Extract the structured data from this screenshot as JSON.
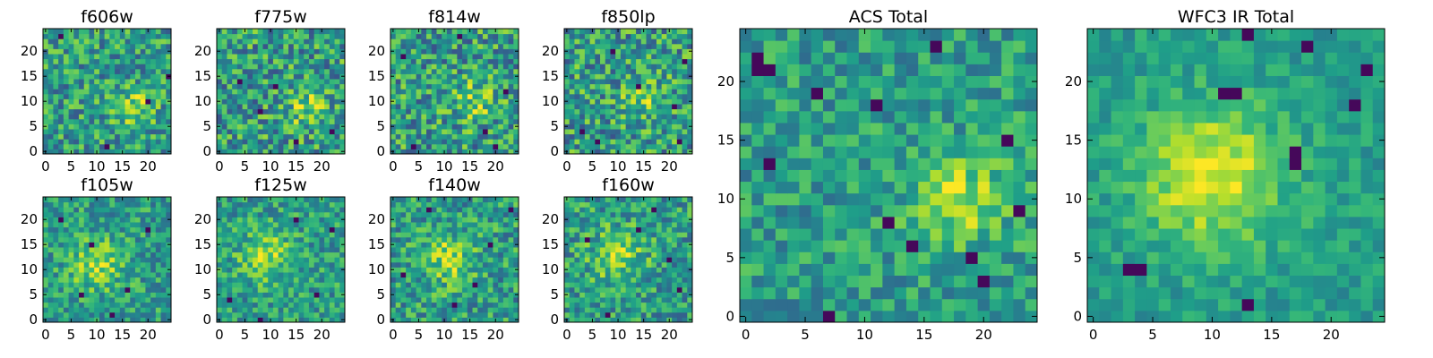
{
  "chart_data": [
    {
      "type": "heatmap",
      "title": "f606w",
      "grid_size": 25,
      "seed": 11,
      "peak": [
        17,
        9
      ],
      "peak_width": 4,
      "peak_strength": 0.25,
      "noise": 0.55,
      "holes": [
        [
          3,
          23
        ],
        [
          12,
          1
        ],
        [
          20,
          10
        ],
        [
          24,
          15
        ]
      ],
      "xticks": [
        0,
        5,
        10,
        15,
        20
      ],
      "yticks": [
        0,
        5,
        10,
        15,
        20
      ],
      "xlim": [
        -0.5,
        24.5
      ],
      "ylim": [
        -0.5,
        24.5
      ],
      "colormap": "viridis"
    },
    {
      "type": "heatmap",
      "title": "f775w",
      "grid_size": 25,
      "seed": 23,
      "peak": [
        17,
        9
      ],
      "peak_width": 4,
      "peak_strength": 0.25,
      "noise": 0.6,
      "holes": [
        [
          4,
          14
        ],
        [
          11,
          13
        ],
        [
          8,
          8
        ],
        [
          22,
          4
        ],
        [
          15,
          2
        ]
      ],
      "xticks": [
        0,
        5,
        10,
        15,
        20
      ],
      "yticks": [
        0,
        5,
        10,
        15,
        20
      ],
      "xlim": [
        -0.5,
        24.5
      ],
      "ylim": [
        -0.5,
        24.5
      ],
      "colormap": "viridis"
    },
    {
      "type": "heatmap",
      "title": "f814w",
      "grid_size": 25,
      "seed": 37,
      "peak": [
        16,
        10
      ],
      "peak_width": 4,
      "peak_strength": 0.25,
      "noise": 0.6,
      "holes": [
        [
          2,
          19
        ],
        [
          13,
          23
        ],
        [
          18,
          4
        ],
        [
          4,
          1
        ],
        [
          20,
          1
        ],
        [
          22,
          12
        ]
      ],
      "xticks": [
        0,
        5,
        10,
        15,
        20
      ],
      "yticks": [
        0,
        5,
        10,
        15,
        20
      ],
      "xlim": [
        -0.5,
        24.5
      ],
      "ylim": [
        -0.5,
        24.5
      ],
      "colormap": "viridis"
    },
    {
      "type": "heatmap",
      "title": "f850lp",
      "grid_size": 25,
      "seed": 41,
      "peak": [
        15,
        11
      ],
      "peak_width": 4,
      "peak_strength": 0.25,
      "noise": 0.6,
      "holes": [
        [
          3,
          4
        ],
        [
          9,
          20
        ],
        [
          14,
          13
        ],
        [
          21,
          9
        ],
        [
          23,
          18
        ],
        [
          6,
          2
        ],
        [
          22,
          2
        ]
      ],
      "xticks": [
        0,
        5,
        10,
        15,
        20
      ],
      "yticks": [
        0,
        5,
        10,
        15,
        20
      ],
      "xlim": [
        -0.5,
        24.5
      ],
      "ylim": [
        -0.5,
        24.5
      ],
      "colormap": "viridis"
    },
    {
      "type": "heatmap",
      "title": "f105w",
      "grid_size": 25,
      "seed": 53,
      "peak": [
        10,
        11
      ],
      "peak_width": 5,
      "peak_strength": 0.3,
      "noise": 0.45,
      "holes": [
        [
          7,
          5
        ],
        [
          13,
          1
        ],
        [
          3,
          20
        ],
        [
          20,
          18
        ],
        [
          16,
          6
        ],
        [
          9,
          15
        ]
      ],
      "xticks": [
        0,
        5,
        10,
        15,
        20
      ],
      "yticks": [
        0,
        5,
        10,
        15,
        20
      ],
      "xlim": [
        -0.5,
        24.5
      ],
      "ylim": [
        -0.5,
        24.5
      ],
      "colormap": "viridis"
    },
    {
      "type": "heatmap",
      "title": "f125w",
      "grid_size": 25,
      "seed": 61,
      "peak": [
        9,
        13
      ],
      "peak_width": 5,
      "peak_strength": 0.3,
      "noise": 0.45,
      "holes": [
        [
          8,
          0
        ],
        [
          2,
          4
        ],
        [
          19,
          5
        ],
        [
          22,
          18
        ],
        [
          15,
          20
        ]
      ],
      "xticks": [
        0,
        5,
        10,
        15,
        20
      ],
      "yticks": [
        0,
        5,
        10,
        15,
        20
      ],
      "xlim": [
        -0.5,
        24.5
      ],
      "ylim": [
        -0.5,
        24.5
      ],
      "colormap": "viridis"
    },
    {
      "type": "heatmap",
      "title": "f140w",
      "grid_size": 25,
      "seed": 71,
      "peak": [
        11,
        12
      ],
      "peak_width": 5,
      "peak_strength": 0.3,
      "noise": 0.5,
      "holes": [
        [
          2,
          9
        ],
        [
          12,
          3
        ],
        [
          19,
          15
        ],
        [
          23,
          22
        ],
        [
          7,
          22
        ],
        [
          16,
          7
        ]
      ],
      "xticks": [
        0,
        5,
        10,
        15,
        20
      ],
      "yticks": [
        0,
        5,
        10,
        15,
        20
      ],
      "xlim": [
        -0.5,
        24.5
      ],
      "ylim": [
        -0.5,
        24.5
      ],
      "colormap": "viridis"
    },
    {
      "type": "heatmap",
      "title": "f160w",
      "grid_size": 25,
      "seed": 83,
      "peak": [
        10,
        13
      ],
      "peak_width": 5,
      "peak_strength": 0.3,
      "noise": 0.5,
      "holes": [
        [
          4,
          16
        ],
        [
          17,
          22
        ],
        [
          22,
          6
        ],
        [
          14,
          18
        ],
        [
          8,
          1
        ],
        [
          20,
          12
        ]
      ],
      "xticks": [
        0,
        5,
        10,
        15,
        20
      ],
      "yticks": [
        0,
        5,
        10,
        15,
        20
      ],
      "xlim": [
        -0.5,
        24.5
      ],
      "ylim": [
        -0.5,
        24.5
      ],
      "colormap": "viridis"
    },
    {
      "type": "heatmap",
      "title": "ACS Total",
      "grid_size": 25,
      "seed": 97,
      "peak": [
        18,
        10
      ],
      "peak_width": 4,
      "peak_strength": 0.3,
      "noise": 0.4,
      "holes": [
        [
          1,
          21
        ],
        [
          2,
          21
        ],
        [
          1,
          22
        ],
        [
          16,
          23
        ],
        [
          6,
          19
        ],
        [
          12,
          8
        ],
        [
          14,
          6
        ],
        [
          19,
          5
        ],
        [
          20,
          3
        ],
        [
          7,
          0
        ],
        [
          23,
          9
        ],
        [
          22,
          15
        ],
        [
          2,
          13
        ],
        [
          11,
          18
        ]
      ],
      "xticks": [
        0,
        5,
        10,
        15,
        20
      ],
      "yticks": [
        0,
        5,
        10,
        15,
        20
      ],
      "xlim": [
        -0.5,
        24.5
      ],
      "ylim": [
        -0.5,
        24.5
      ],
      "colormap": "viridis"
    },
    {
      "type": "heatmap",
      "title": "WFC3 IR Total",
      "grid_size": 25,
      "seed": 109,
      "peak": [
        10,
        12
      ],
      "peak_width": 6,
      "peak_strength": 0.42,
      "noise": 0.25,
      "holes": [
        [
          13,
          24
        ],
        [
          3,
          4
        ],
        [
          4,
          4
        ],
        [
          13,
          1
        ],
        [
          17,
          13
        ],
        [
          17,
          14
        ],
        [
          11,
          19
        ],
        [
          12,
          19
        ],
        [
          18,
          23
        ],
        [
          23,
          21
        ],
        [
          22,
          18
        ]
      ],
      "xticks": [
        0,
        5,
        10,
        15,
        20
      ],
      "yticks": [
        0,
        5,
        10,
        15,
        20
      ],
      "xlim": [
        -0.5,
        24.5
      ],
      "ylim": [
        -0.5,
        24.5
      ],
      "colormap": "viridis"
    }
  ]
}
